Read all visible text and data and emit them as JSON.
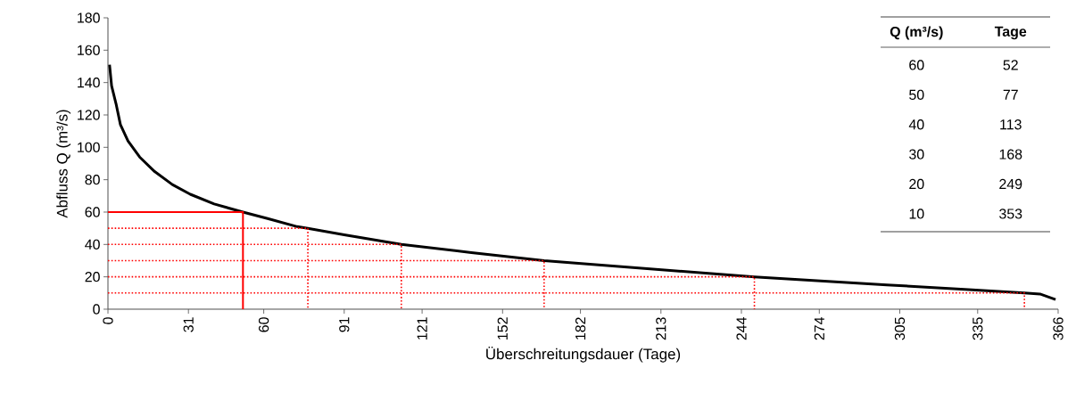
{
  "chart_data": {
    "type": "line",
    "xlabel": "Überschreitungsdauer (Tage)",
    "ylabel": "Abfluss Q (m³/s)",
    "xlim": [
      0,
      366
    ],
    "ylim": [
      0,
      180
    ],
    "xticks": [
      0,
      31,
      60,
      91,
      121,
      152,
      182,
      213,
      244,
      274,
      305,
      335,
      366
    ],
    "yticks": [
      0,
      20,
      40,
      60,
      80,
      100,
      120,
      140,
      160,
      180
    ],
    "grid": false,
    "annotations": [
      "Q (m³/s)",
      "Tage",
      "60",
      "52",
      "50",
      "77",
      "40",
      "113",
      "30",
      "168",
      "20",
      "249",
      "10",
      "353"
    ],
    "series": [
      {
        "color": "#000000",
        "line_style": "solid",
        "x": [
          0.6,
          1.4,
          3.1,
          4.8,
          7.7,
          12.2,
          18,
          24.8,
          31.7,
          40.9,
          52,
          61.5,
          72.9,
          77,
          91,
          113,
          140,
          168,
          200,
          249,
          300,
          330,
          353,
          359,
          365
        ],
        "values": [
          151,
          138,
          127,
          114,
          104,
          94,
          85,
          77,
          71,
          65,
          60,
          56,
          51,
          50,
          46,
          40,
          35,
          30,
          26,
          20,
          15,
          12.3,
          10,
          9.4,
          6
        ]
      },
      {
        "color": "#ff0000",
        "line_style": "solid",
        "x": [
          0,
          52,
          52
        ],
        "values": [
          60,
          60,
          0
        ]
      },
      {
        "color": "#ff0000",
        "line_style": "dotted",
        "x": [
          0,
          77,
          77
        ],
        "values": [
          50,
          50,
          0
        ]
      },
      {
        "color": "#ff0000",
        "line_style": "dotted",
        "x": [
          0,
          113,
          113
        ],
        "values": [
          40,
          40,
          0
        ]
      },
      {
        "color": "#ff0000",
        "line_style": "dotted",
        "x": [
          0,
          168,
          168
        ],
        "values": [
          30,
          30,
          0
        ]
      },
      {
        "color": "#ff0000",
        "line_style": "dotted",
        "x": [
          0,
          249,
          249
        ],
        "values": [
          20,
          20,
          0
        ]
      },
      {
        "color": "#ff0000",
        "line_style": "dotted",
        "x": [
          0,
          353,
          353
        ],
        "values": [
          10,
          10,
          0
        ]
      }
    ]
  }
}
